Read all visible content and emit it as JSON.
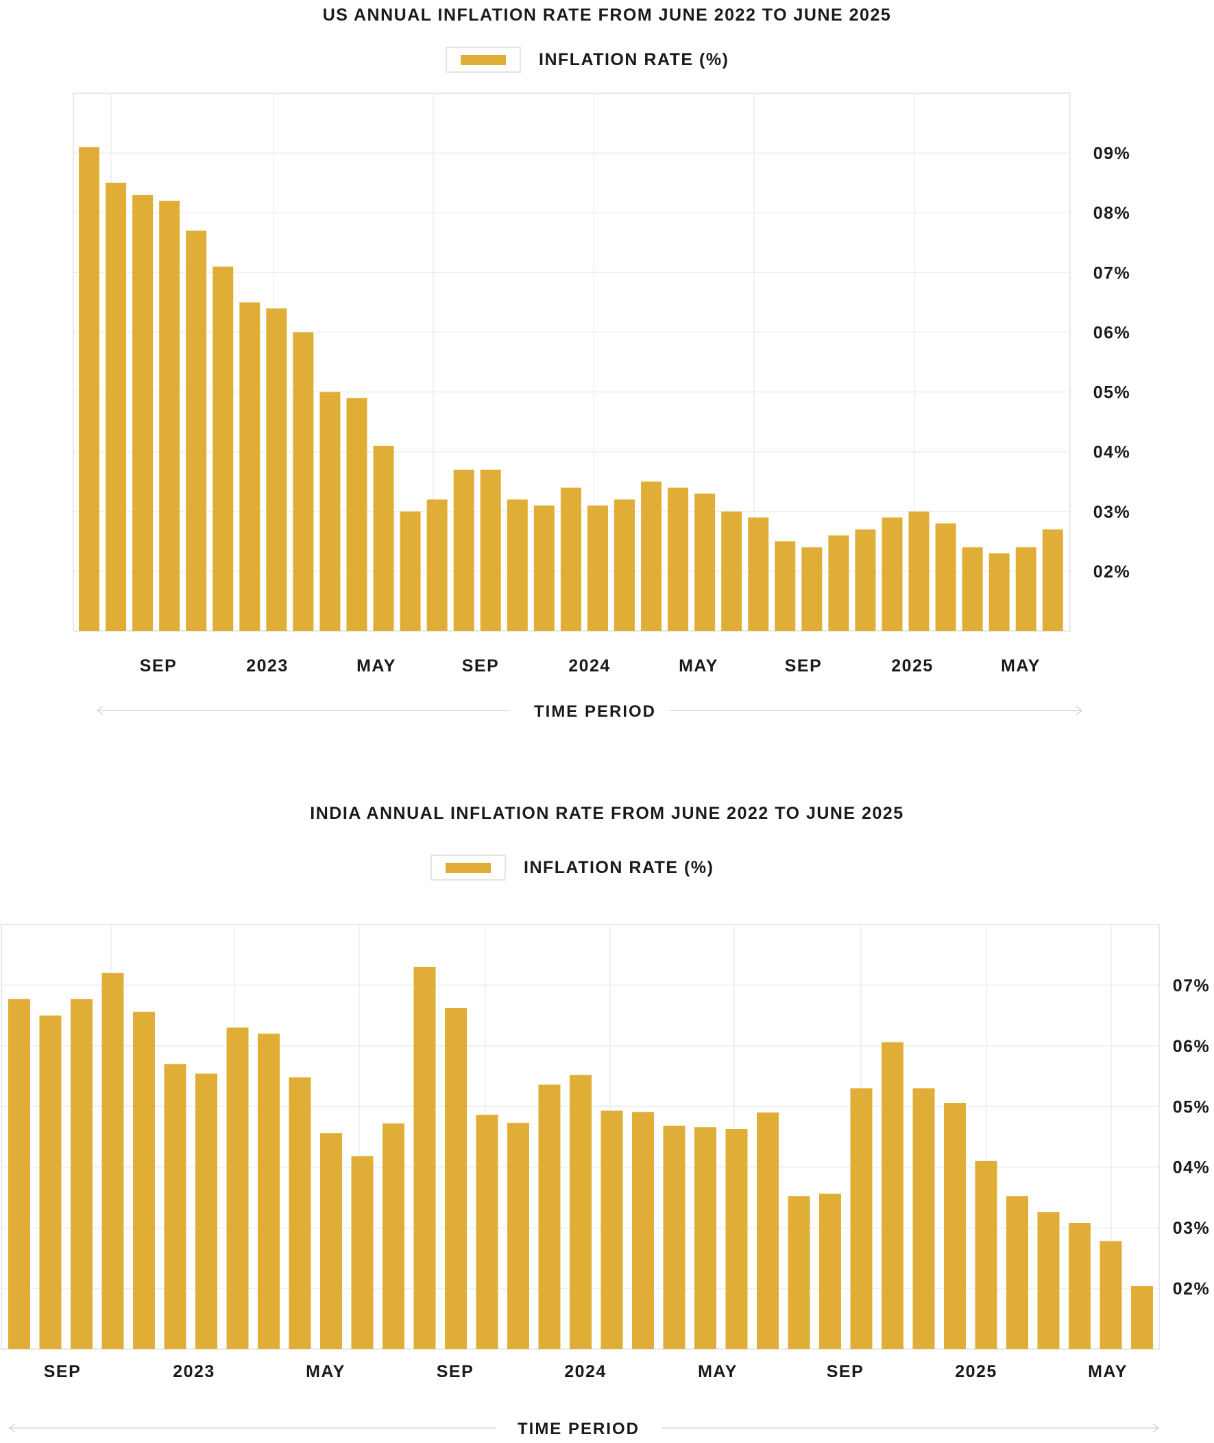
{
  "colors": {
    "bar": "#e0ae36",
    "grid": "#eeeeee",
    "frame": "#e8e8e8",
    "axis_line": "#d6d6d6",
    "text": "#1a1a1a"
  },
  "chart_data": [
    {
      "type": "bar",
      "title": "US ANNUAL INFLATION RATE FROM JUNE 2022 TO JUNE 2025",
      "legend": {
        "label": "INFLATION RATE (%)",
        "placement": "top-center"
      },
      "xlabel": "TIME PERIOD",
      "x_tick_labels": [
        "SEP",
        "2023",
        "MAY",
        "SEP",
        "2024",
        "MAY",
        "SEP",
        "2025",
        "MAY"
      ],
      "y_tick_labels": [
        "02%",
        "03%",
        "04%",
        "05%",
        "06%",
        "07%",
        "08%",
        "09%"
      ],
      "y_ticks": [
        2,
        3,
        4,
        5,
        6,
        7,
        8,
        9
      ],
      "ylim": [
        1.0,
        10.0
      ],
      "y_axis_side": "right",
      "grid": true,
      "categories": [
        "2022-06",
        "2022-07",
        "2022-08",
        "2022-09",
        "2022-10",
        "2022-11",
        "2022-12",
        "2023-01",
        "2023-02",
        "2023-03",
        "2023-04",
        "2023-05",
        "2023-06",
        "2023-07",
        "2023-08",
        "2023-09",
        "2023-10",
        "2023-11",
        "2023-12",
        "2024-01",
        "2024-02",
        "2024-03",
        "2024-04",
        "2024-05",
        "2024-06",
        "2024-07",
        "2024-08",
        "2024-09",
        "2024-10",
        "2024-11",
        "2024-12",
        "2025-01",
        "2025-02",
        "2025-03",
        "2025-04",
        "2025-05",
        "2025-06"
      ],
      "values": [
        9.1,
        8.5,
        8.3,
        8.2,
        7.7,
        7.1,
        6.5,
        6.4,
        6.0,
        5.0,
        4.9,
        4.1,
        3.0,
        3.2,
        3.7,
        3.7,
        3.2,
        3.1,
        3.4,
        3.1,
        3.2,
        3.5,
        3.4,
        3.3,
        3.0,
        2.9,
        2.5,
        2.4,
        2.6,
        2.7,
        2.9,
        3.0,
        2.8,
        2.4,
        2.3,
        2.4,
        2.7
      ]
    },
    {
      "type": "bar",
      "title": "INDIA ANNUAL INFLATION RATE FROM JUNE 2022 TO JUNE 2025",
      "legend": {
        "label": "INFLATION RATE (%)",
        "placement": "top-center"
      },
      "xlabel": "TIME PERIOD",
      "x_tick_labels": [
        "SEP",
        "2023",
        "MAY",
        "SEP",
        "2024",
        "MAY",
        "SEP",
        "2025",
        "MAY"
      ],
      "y_tick_labels": [
        "02%",
        "03%",
        "04%",
        "05%",
        "06%",
        "07%"
      ],
      "y_ticks": [
        2,
        3,
        4,
        5,
        6,
        7
      ],
      "ylim": [
        1.0,
        8.0
      ],
      "y_axis_side": "right",
      "grid": true,
      "categories": [
        "2022-06",
        "2022-07",
        "2022-08",
        "2022-09",
        "2022-10",
        "2022-11",
        "2022-12",
        "2023-01",
        "2023-02",
        "2023-03",
        "2023-04",
        "2023-05",
        "2023-06",
        "2023-07",
        "2023-08",
        "2023-09",
        "2023-10",
        "2023-11",
        "2023-12",
        "2024-01",
        "2024-02",
        "2024-03",
        "2024-04",
        "2024-05",
        "2024-06",
        "2024-07",
        "2024-08",
        "2024-09",
        "2024-10",
        "2024-11",
        "2024-12",
        "2025-01",
        "2025-02",
        "2025-03",
        "2025-04",
        "2025-05",
        "2025-06"
      ],
      "values": [
        6.77,
        6.5,
        6.77,
        7.2,
        6.56,
        5.7,
        5.54,
        6.3,
        6.2,
        5.48,
        4.56,
        4.18,
        4.72,
        7.3,
        6.62,
        4.86,
        4.73,
        5.36,
        5.52,
        4.93,
        4.91,
        4.68,
        4.66,
        4.63,
        4.9,
        3.52,
        3.56,
        5.3,
        6.06,
        5.3,
        5.06,
        4.1,
        3.52,
        3.26,
        3.08,
        2.78,
        2.04
      ]
    }
  ]
}
